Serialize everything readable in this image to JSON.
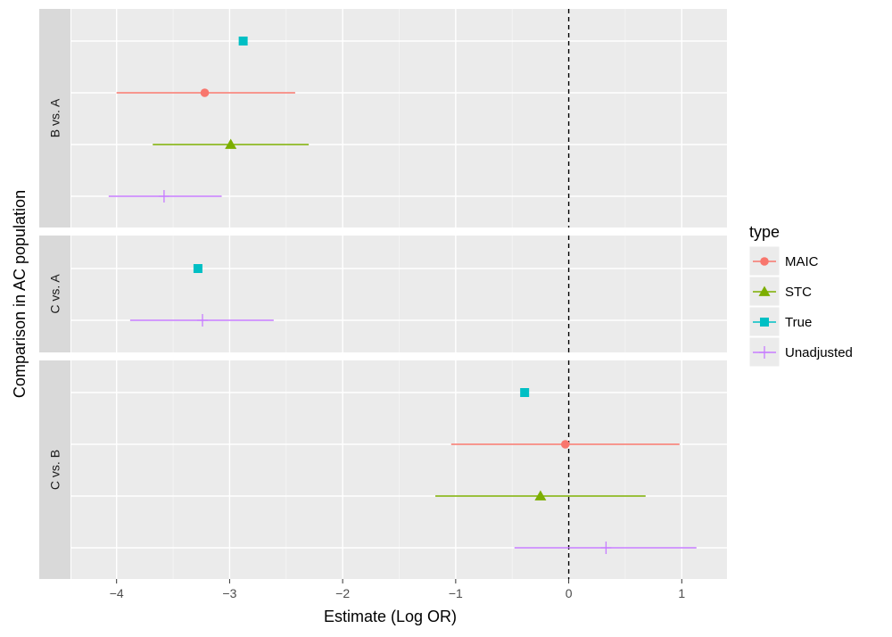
{
  "chart_data": {
    "type": "scatter",
    "subtype": "forest-plot-faceted",
    "xlabel": "Estimate (Log OR)",
    "ylabel": "Comparison in AC population",
    "xlim": [
      -4.4,
      1.4
    ],
    "x_ticks": [
      -4,
      -3,
      -2,
      -1,
      0,
      1
    ],
    "x_tick_labels": [
      "−4",
      "−3",
      "−2",
      "−1",
      "0",
      "1"
    ],
    "reference_line": 0,
    "legend_title": "type",
    "legend_position": "right",
    "types": [
      {
        "name": "MAIC",
        "color": "#F8766D",
        "shape": "circle"
      },
      {
        "name": "STC",
        "color": "#7CAE00",
        "shape": "triangle"
      },
      {
        "name": "True",
        "color": "#00BFC4",
        "shape": "square"
      },
      {
        "name": "Unadjusted",
        "color": "#C77CFF",
        "shape": "plus"
      }
    ],
    "facets": [
      {
        "label": "B vs. A",
        "rows": 4,
        "points": [
          {
            "type": "True",
            "row": 1,
            "estimate": -2.88
          },
          {
            "type": "MAIC",
            "row": 2,
            "estimate": -3.22,
            "lower": -4.0,
            "upper": -2.42
          },
          {
            "type": "STC",
            "row": 3,
            "estimate": -2.99,
            "lower": -3.68,
            "upper": -2.3
          },
          {
            "type": "Unadjusted",
            "row": 4,
            "estimate": -3.58,
            "lower": -4.07,
            "upper": -3.07
          }
        ]
      },
      {
        "label": "C vs. A",
        "rows": 2,
        "points": [
          {
            "type": "True",
            "row": 1,
            "estimate": -3.28
          },
          {
            "type": "Unadjusted",
            "row": 2,
            "estimate": -3.24,
            "lower": -3.88,
            "upper": -2.61
          }
        ]
      },
      {
        "label": "C vs. B",
        "rows": 4,
        "points": [
          {
            "type": "True",
            "row": 1,
            "estimate": -0.39
          },
          {
            "type": "MAIC",
            "row": 2,
            "estimate": -0.03,
            "lower": -1.04,
            "upper": 0.98
          },
          {
            "type": "STC",
            "row": 3,
            "estimate": -0.25,
            "lower": -1.18,
            "upper": 0.68
          },
          {
            "type": "Unadjusted",
            "row": 4,
            "estimate": 0.33,
            "lower": -0.48,
            "upper": 1.13
          }
        ]
      }
    ]
  }
}
